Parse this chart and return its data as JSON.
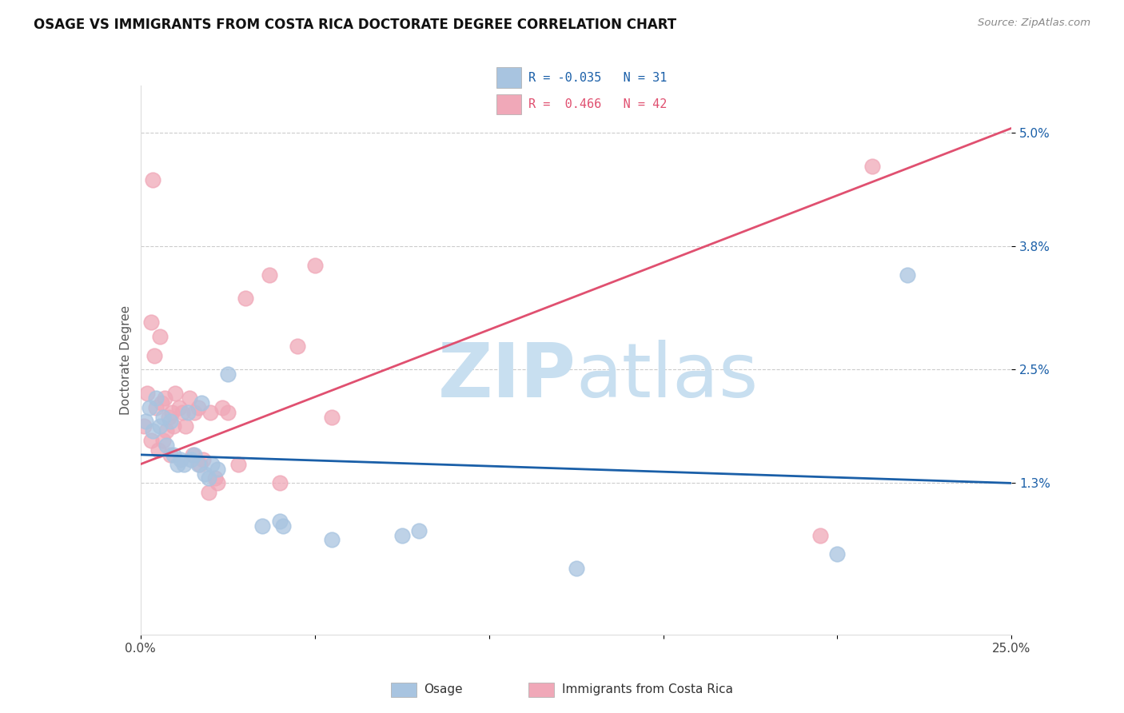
{
  "title": "OSAGE VS IMMIGRANTS FROM COSTA RICA DOCTORATE DEGREE CORRELATION CHART",
  "source": "Source: ZipAtlas.com",
  "ylabel": "Doctorate Degree",
  "ytick_values": [
    1.3,
    2.5,
    3.8,
    5.0
  ],
  "xlim": [
    0.0,
    25.0
  ],
  "ylim": [
    -0.3,
    5.5
  ],
  "legend_blue_label": "Osage",
  "legend_pink_label": "Immigrants from Costa Rica",
  "R_blue": -0.035,
  "N_blue": 31,
  "R_pink": 0.466,
  "N_pink": 42,
  "blue_color": "#a8c4e0",
  "pink_color": "#f0a8b8",
  "blue_line_color": "#1a5fa8",
  "pink_line_color": "#e05070",
  "blue_scatter": [
    [
      0.15,
      1.95
    ],
    [
      0.25,
      2.1
    ],
    [
      0.35,
      1.85
    ],
    [
      0.45,
      2.2
    ],
    [
      0.55,
      1.9
    ],
    [
      0.65,
      2.0
    ],
    [
      0.75,
      1.7
    ],
    [
      0.85,
      1.95
    ],
    [
      0.95,
      1.6
    ],
    [
      1.05,
      1.5
    ],
    [
      1.15,
      1.55
    ],
    [
      1.25,
      1.5
    ],
    [
      1.35,
      2.05
    ],
    [
      1.45,
      1.55
    ],
    [
      1.55,
      1.6
    ],
    [
      1.65,
      1.5
    ],
    [
      1.75,
      2.15
    ],
    [
      1.85,
      1.4
    ],
    [
      1.95,
      1.35
    ],
    [
      2.05,
      1.5
    ],
    [
      2.2,
      1.45
    ],
    [
      2.5,
      2.45
    ],
    [
      3.5,
      0.85
    ],
    [
      4.0,
      0.9
    ],
    [
      4.1,
      0.85
    ],
    [
      5.5,
      0.7
    ],
    [
      7.5,
      0.75
    ],
    [
      8.0,
      0.8
    ],
    [
      12.5,
      0.4
    ],
    [
      20.0,
      0.55
    ],
    [
      22.0,
      3.5
    ]
  ],
  "pink_scatter": [
    [
      0.1,
      1.9
    ],
    [
      0.2,
      2.25
    ],
    [
      0.3,
      1.75
    ],
    [
      0.35,
      4.5
    ],
    [
      0.45,
      2.1
    ],
    [
      0.5,
      1.65
    ],
    [
      0.6,
      2.15
    ],
    [
      0.65,
      1.75
    ],
    [
      0.7,
      2.2
    ],
    [
      0.75,
      1.85
    ],
    [
      0.8,
      2.0
    ],
    [
      0.85,
      1.6
    ],
    [
      0.9,
      2.05
    ],
    [
      0.95,
      1.9
    ],
    [
      1.0,
      2.25
    ],
    [
      1.1,
      2.1
    ],
    [
      1.2,
      2.05
    ],
    [
      1.3,
      1.9
    ],
    [
      1.4,
      2.2
    ],
    [
      1.5,
      1.6
    ],
    [
      1.55,
      2.05
    ],
    [
      1.65,
      2.1
    ],
    [
      1.7,
      1.5
    ],
    [
      1.8,
      1.55
    ],
    [
      2.0,
      2.05
    ],
    [
      2.15,
      1.35
    ],
    [
      2.2,
      1.3
    ],
    [
      2.35,
      2.1
    ],
    [
      2.5,
      2.05
    ],
    [
      2.8,
      1.5
    ],
    [
      3.0,
      3.25
    ],
    [
      3.7,
      3.5
    ],
    [
      4.0,
      1.3
    ],
    [
      4.5,
      2.75
    ],
    [
      5.0,
      3.6
    ],
    [
      5.5,
      2.0
    ],
    [
      0.3,
      3.0
    ],
    [
      0.55,
      2.85
    ],
    [
      0.4,
      2.65
    ],
    [
      1.95,
      1.2
    ],
    [
      21.0,
      4.65
    ],
    [
      19.5,
      0.75
    ]
  ],
  "blue_line_x0": 0.0,
  "blue_line_y0": 1.6,
  "blue_line_x1": 25.0,
  "blue_line_y1": 1.3,
  "pink_line_x0": 0.0,
  "pink_line_y0": 1.5,
  "pink_line_x1": 25.0,
  "pink_line_y1": 5.05,
  "watermark_zip_color": "#c8dff0",
  "watermark_atlas_color": "#c8dff0",
  "watermark_fontsize": 68
}
